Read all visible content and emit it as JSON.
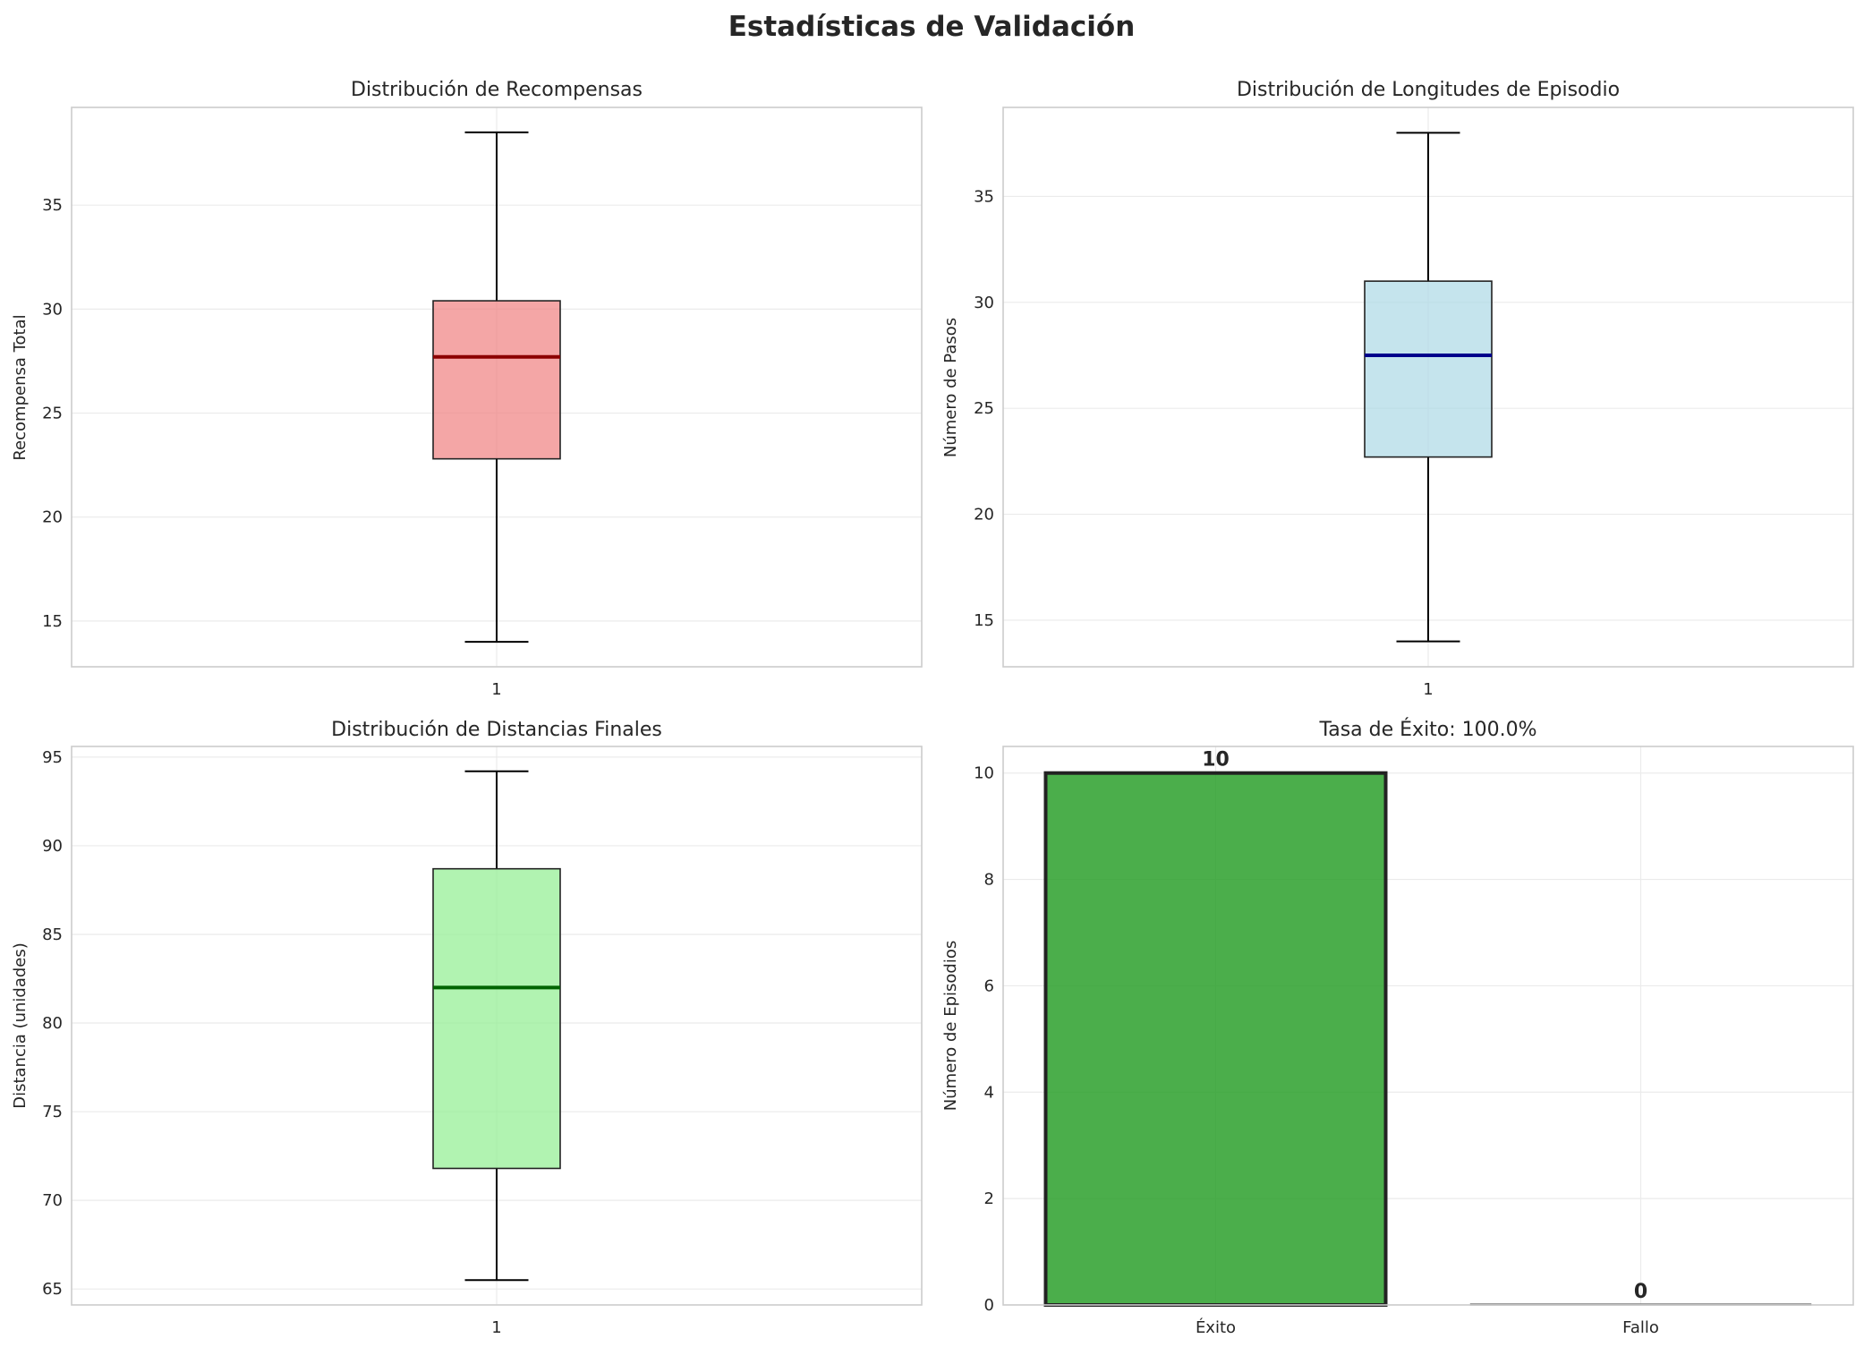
{
  "figure": {
    "title": "Estadísticas de Validación"
  },
  "chart_data": [
    {
      "type": "box",
      "title": "Distribución de Recompensas",
      "xlabel": "",
      "ylabel": "Recompensa Total",
      "categories": [
        "1"
      ],
      "ylim": [
        12.8,
        39.7
      ],
      "yticks": [
        15,
        20,
        25,
        30,
        35
      ],
      "box": {
        "whisker_low": 14.0,
        "q1": 22.8,
        "median": 27.7,
        "q3": 30.4,
        "whisker_high": 38.5
      },
      "box_color": "#f08080",
      "median_color": "#8b0000",
      "grid": true
    },
    {
      "type": "box",
      "title": "Distribución de Longitudes de Episodio",
      "xlabel": "",
      "ylabel": "Número de Pasos",
      "categories": [
        "1"
      ],
      "ylim": [
        12.8,
        39.2
      ],
      "yticks": [
        15,
        20,
        25,
        30,
        35
      ],
      "box": {
        "whisker_low": 14.0,
        "q1": 22.7,
        "median": 27.5,
        "q3": 31.0,
        "whisker_high": 38.0
      },
      "box_color": "#add8e6",
      "median_color": "#00008b",
      "grid": true
    },
    {
      "type": "box",
      "title": "Distribución de Distancias Finales",
      "xlabel": "",
      "ylabel": "Distancia (unidades)",
      "categories": [
        "1"
      ],
      "ylim": [
        64.1,
        95.6
      ],
      "yticks": [
        65,
        70,
        75,
        80,
        85,
        90,
        95
      ],
      "box": {
        "whisker_low": 65.5,
        "q1": 71.8,
        "median": 82.0,
        "q3": 88.7,
        "whisker_high": 94.2
      },
      "box_color": "#90ee90",
      "median_color": "#006400",
      "grid": true
    },
    {
      "type": "bar",
      "title": "Tasa de Éxito: 100.0%",
      "xlabel": "",
      "ylabel": "Número de Episodios",
      "categories": [
        "Éxito",
        "Fallo"
      ],
      "values": [
        10,
        0
      ],
      "value_labels": [
        "10",
        "0"
      ],
      "colors": [
        "#2ca02c",
        "#808080"
      ],
      "ylim": [
        0,
        10.5
      ],
      "yticks": [
        0,
        2,
        4,
        6,
        8,
        10
      ],
      "grid": true
    }
  ]
}
